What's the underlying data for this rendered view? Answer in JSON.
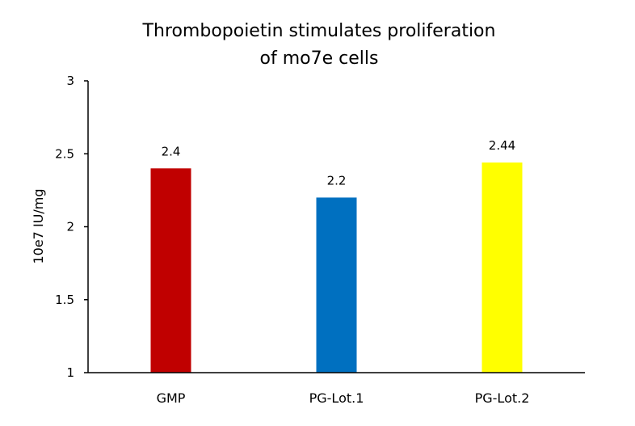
{
  "chart_data": {
    "type": "bar",
    "title_lines": [
      "Thrombopoietin stimulates proliferation",
      "of mo7e cells"
    ],
    "xlabel": "",
    "ylabel": "10e7 IU/mg",
    "categories": [
      "GMP",
      "PG-Lot.1",
      "PG-Lot.2"
    ],
    "values": [
      2.4,
      2.2,
      2.44
    ],
    "data_labels": [
      "2.4",
      "2.2",
      "2.44"
    ],
    "colors": [
      "#C00000",
      "#0070C0",
      "#FFFF00"
    ],
    "ylim": [
      1,
      3
    ],
    "yticks": [
      1,
      1.5,
      2,
      2.5,
      3
    ],
    "ytick_labels": [
      "1",
      "1.5",
      "2",
      "2.5",
      "3"
    ],
    "grid": false,
    "legend": "none"
  }
}
